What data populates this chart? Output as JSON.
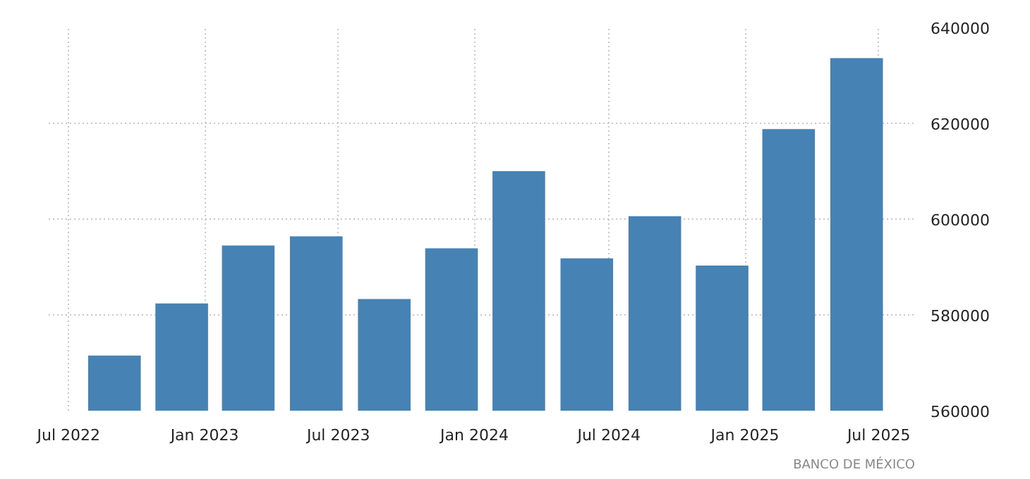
{
  "chart_data": {
    "type": "bar",
    "x": [
      "2022-09",
      "2022-12",
      "2023-03",
      "2023-06",
      "2023-09",
      "2023-12",
      "2024-03",
      "2024-06",
      "2024-09",
      "2024-12",
      "2025-03",
      "2025-06"
    ],
    "values": [
      571500,
      582400,
      594500,
      596400,
      583300,
      593900,
      610000,
      591800,
      600600,
      590300,
      618800,
      633600
    ],
    "color": "#4682b4",
    "xlim": [
      "2022-06-04",
      "2025-08-19"
    ],
    "xticks": [
      {
        "value": "2022-07",
        "label": "Jul 2022"
      },
      {
        "value": "2023-01",
        "label": "Jan 2023"
      },
      {
        "value": "2023-07",
        "label": "Jul 2023"
      },
      {
        "value": "2024-01",
        "label": "Jan 2024"
      },
      {
        "value": "2024-07",
        "label": "Jul 2024"
      },
      {
        "value": "2025-01",
        "label": "Jan 2025"
      },
      {
        "value": "2025-07",
        "label": "Jul 2025"
      }
    ],
    "ylim": [
      560000,
      640000
    ],
    "yticks": [
      560000,
      580000,
      600000,
      620000,
      640000
    ],
    "grid": true,
    "annotations": [
      "BANCO DE MÉXICO"
    ]
  }
}
